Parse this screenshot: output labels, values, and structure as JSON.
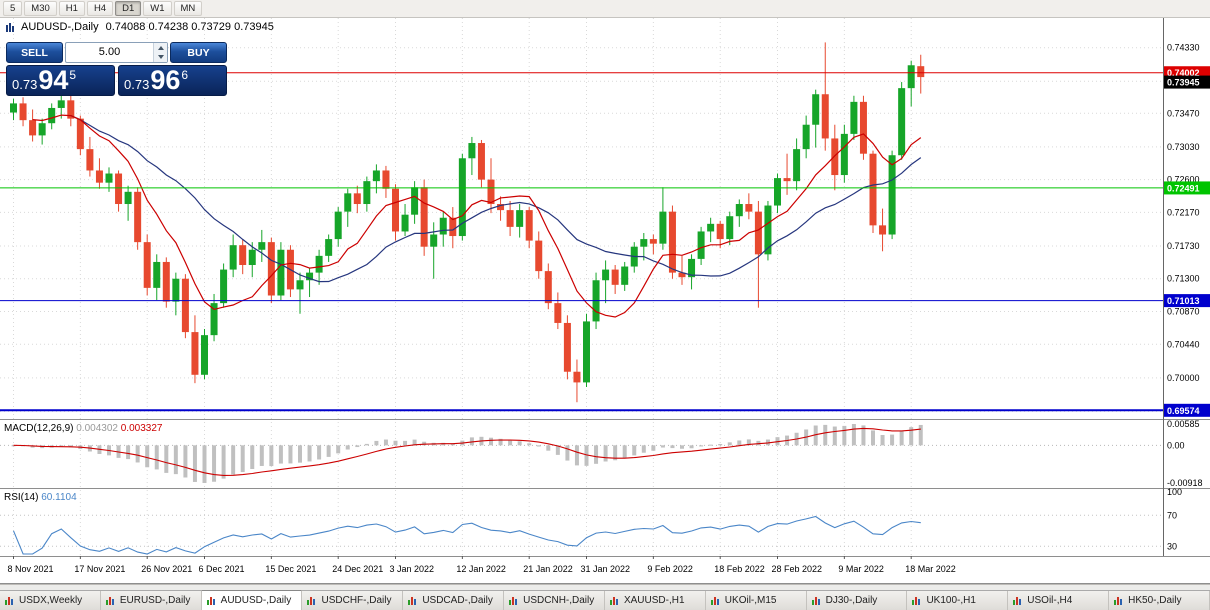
{
  "toolbar": {
    "timeframes": [
      "5",
      "M30",
      "H1",
      "H4",
      "D1",
      "W1",
      "MN"
    ],
    "active": "D1"
  },
  "chart": {
    "title": "AUDUSD-,Daily",
    "ohlc_text": "0.74088 0.74238 0.73729 0.73945"
  },
  "trade_panel": {
    "sell_label": "SELL",
    "buy_label": "BUY",
    "volume": "5.00",
    "sell_price": {
      "prefix": "0.73",
      "big": "94",
      "small": "5"
    },
    "buy_price": {
      "prefix": "0.73",
      "big": "96",
      "small": "6"
    }
  },
  "chart_data": {
    "type": "candlestick",
    "symbol": "AUDUSD",
    "period": "Daily",
    "price_range": [
      0.6946,
      0.7472
    ],
    "y_ticks": [
      0.7433,
      0.7389,
      0.7347,
      0.7303,
      0.726,
      0.7217,
      0.7173,
      0.713,
      0.7087,
      0.7044,
      0.7,
      0.6956
    ],
    "x_labels": [
      {
        "i": 0,
        "t": "8 Nov 2021"
      },
      {
        "i": 7,
        "t": "17 Nov 2021"
      },
      {
        "i": 14,
        "t": "26 Nov 2021"
      },
      {
        "i": 20,
        "t": "6 Dec 2021"
      },
      {
        "i": 27,
        "t": "15 Dec 2021"
      },
      {
        "i": 34,
        "t": "24 Dec 2021"
      },
      {
        "i": 40,
        "t": "3 Jan 2022"
      },
      {
        "i": 47,
        "t": "12 Jan 2022"
      },
      {
        "i": 54,
        "t": "21 Jan 2022"
      },
      {
        "i": 60,
        "t": "31 Jan 2022"
      },
      {
        "i": 67,
        "t": "9 Feb 2022"
      },
      {
        "i": 74,
        "t": "18 Feb 2022"
      },
      {
        "i": 80,
        "t": "28 Feb 2022"
      },
      {
        "i": 87,
        "t": "9 Mar 2022"
      },
      {
        "i": 94,
        "t": "18 Mar 2022"
      }
    ],
    "ohlc": [
      [
        0.7348,
        0.7366,
        0.7338,
        0.736
      ],
      [
        0.736,
        0.7368,
        0.733,
        0.7338
      ],
      [
        0.7338,
        0.7352,
        0.731,
        0.7318
      ],
      [
        0.7318,
        0.734,
        0.7306,
        0.7334
      ],
      [
        0.7334,
        0.736,
        0.7326,
        0.7354
      ],
      [
        0.7354,
        0.737,
        0.734,
        0.7364
      ],
      [
        0.7364,
        0.7372,
        0.733,
        0.734
      ],
      [
        0.734,
        0.7344,
        0.7292,
        0.73
      ],
      [
        0.73,
        0.7316,
        0.7264,
        0.7272
      ],
      [
        0.7272,
        0.7288,
        0.7248,
        0.7256
      ],
      [
        0.7256,
        0.7276,
        0.7244,
        0.7268
      ],
      [
        0.7268,
        0.7272,
        0.7218,
        0.7228
      ],
      [
        0.7228,
        0.7252,
        0.7206,
        0.7244
      ],
      [
        0.7244,
        0.725,
        0.7168,
        0.7178
      ],
      [
        0.7178,
        0.7188,
        0.7108,
        0.7118
      ],
      [
        0.7118,
        0.7162,
        0.7102,
        0.7152
      ],
      [
        0.7152,
        0.7158,
        0.7092,
        0.71
      ],
      [
        0.71,
        0.7138,
        0.7082,
        0.713
      ],
      [
        0.713,
        0.7136,
        0.7052,
        0.706
      ],
      [
        0.706,
        0.7082,
        0.6993,
        0.7004
      ],
      [
        0.7004,
        0.7064,
        0.6998,
        0.7056
      ],
      [
        0.7056,
        0.711,
        0.7048,
        0.7098
      ],
      [
        0.7098,
        0.715,
        0.7092,
        0.7142
      ],
      [
        0.7142,
        0.7188,
        0.7132,
        0.7174
      ],
      [
        0.7174,
        0.7182,
        0.7136,
        0.7148
      ],
      [
        0.7148,
        0.7178,
        0.7132,
        0.7168
      ],
      [
        0.7168,
        0.7194,
        0.7152,
        0.7178
      ],
      [
        0.7178,
        0.7184,
        0.7098,
        0.7108
      ],
      [
        0.7108,
        0.7178,
        0.7102,
        0.7168
      ],
      [
        0.7168,
        0.7174,
        0.7106,
        0.7116
      ],
      [
        0.7116,
        0.7138,
        0.7084,
        0.7128
      ],
      [
        0.7128,
        0.7144,
        0.7106,
        0.7138
      ],
      [
        0.7138,
        0.7168,
        0.7122,
        0.716
      ],
      [
        0.716,
        0.7188,
        0.7152,
        0.7182
      ],
      [
        0.7182,
        0.7224,
        0.7172,
        0.7218
      ],
      [
        0.7218,
        0.7248,
        0.7198,
        0.7242
      ],
      [
        0.7242,
        0.7252,
        0.7216,
        0.7228
      ],
      [
        0.7228,
        0.7264,
        0.7218,
        0.7258
      ],
      [
        0.7258,
        0.728,
        0.7242,
        0.7272
      ],
      [
        0.7272,
        0.7278,
        0.7236,
        0.7248
      ],
      [
        0.7248,
        0.7254,
        0.718,
        0.7192
      ],
      [
        0.7192,
        0.7228,
        0.7186,
        0.7214
      ],
      [
        0.7214,
        0.7258,
        0.7202,
        0.725
      ],
      [
        0.725,
        0.726,
        0.716,
        0.7172
      ],
      [
        0.7172,
        0.7204,
        0.713,
        0.7188
      ],
      [
        0.7188,
        0.7218,
        0.7172,
        0.721
      ],
      [
        0.721,
        0.7224,
        0.717,
        0.7186
      ],
      [
        0.7186,
        0.7294,
        0.718,
        0.7288
      ],
      [
        0.7288,
        0.7316,
        0.7266,
        0.7308
      ],
      [
        0.7308,
        0.7312,
        0.725,
        0.726
      ],
      [
        0.726,
        0.7288,
        0.7216,
        0.7228
      ],
      [
        0.7228,
        0.7238,
        0.7206,
        0.722
      ],
      [
        0.722,
        0.7232,
        0.7186,
        0.7198
      ],
      [
        0.7198,
        0.7228,
        0.7184,
        0.722
      ],
      [
        0.722,
        0.7224,
        0.717,
        0.718
      ],
      [
        0.718,
        0.7192,
        0.713,
        0.714
      ],
      [
        0.714,
        0.715,
        0.709,
        0.7098
      ],
      [
        0.7098,
        0.7112,
        0.7064,
        0.7072
      ],
      [
        0.7072,
        0.7082,
        0.6998,
        0.7008
      ],
      [
        0.7008,
        0.7024,
        0.6968,
        0.6994
      ],
      [
        0.6994,
        0.7084,
        0.6988,
        0.7074
      ],
      [
        0.7074,
        0.7138,
        0.7064,
        0.7128
      ],
      [
        0.7128,
        0.7154,
        0.7098,
        0.7142
      ],
      [
        0.7142,
        0.7148,
        0.711,
        0.7122
      ],
      [
        0.7122,
        0.7152,
        0.7114,
        0.7146
      ],
      [
        0.7146,
        0.7178,
        0.7138,
        0.7172
      ],
      [
        0.7172,
        0.719,
        0.7154,
        0.7182
      ],
      [
        0.7182,
        0.7188,
        0.7162,
        0.7176
      ],
      [
        0.7176,
        0.725,
        0.7168,
        0.7218
      ],
      [
        0.7218,
        0.7226,
        0.713,
        0.7138
      ],
      [
        0.7138,
        0.716,
        0.7122,
        0.7132
      ],
      [
        0.7132,
        0.7162,
        0.7116,
        0.7156
      ],
      [
        0.7156,
        0.7198,
        0.7148,
        0.7192
      ],
      [
        0.7192,
        0.721,
        0.7178,
        0.7202
      ],
      [
        0.7202,
        0.7206,
        0.717,
        0.7182
      ],
      [
        0.7182,
        0.7218,
        0.7174,
        0.7212
      ],
      [
        0.7212,
        0.7234,
        0.7198,
        0.7228
      ],
      [
        0.7228,
        0.7242,
        0.7208,
        0.7218
      ],
      [
        0.7218,
        0.7232,
        0.7092,
        0.7162
      ],
      [
        0.7162,
        0.7232,
        0.7154,
        0.7226
      ],
      [
        0.7226,
        0.7268,
        0.7216,
        0.7262
      ],
      [
        0.7262,
        0.7294,
        0.724,
        0.7258
      ],
      [
        0.7258,
        0.7314,
        0.7246,
        0.73
      ],
      [
        0.73,
        0.7344,
        0.7288,
        0.7332
      ],
      [
        0.7332,
        0.7378,
        0.7302,
        0.7372
      ],
      [
        0.7372,
        0.744,
        0.7298,
        0.7314
      ],
      [
        0.7314,
        0.7332,
        0.7246,
        0.7266
      ],
      [
        0.7266,
        0.7332,
        0.7256,
        0.732
      ],
      [
        0.732,
        0.737,
        0.7312,
        0.7362
      ],
      [
        0.7362,
        0.737,
        0.7286,
        0.7294
      ],
      [
        0.7294,
        0.7298,
        0.719,
        0.72
      ],
      [
        0.72,
        0.7222,
        0.7166,
        0.7188
      ],
      [
        0.7188,
        0.7298,
        0.7182,
        0.7292
      ],
      [
        0.7292,
        0.7388,
        0.7286,
        0.738
      ],
      [
        0.738,
        0.7416,
        0.7356,
        0.741
      ],
      [
        0.74088,
        0.74238,
        0.73729,
        0.73945
      ]
    ],
    "overlays": {
      "ma_fast_period": 8,
      "ma_slow_period": 20
    },
    "hlines": [
      {
        "value": 0.74002,
        "label": "0.74002",
        "color": "#dd0000",
        "width": 1
      },
      {
        "value": 0.72491,
        "label": "0.72491",
        "color": "#00c400",
        "width": 1
      },
      {
        "value": 0.71013,
        "label": "0.71013",
        "color": "#0000cd",
        "width": 1
      },
      {
        "value": 0.69574,
        "label": "0.69574",
        "color": "#0000cd",
        "width": 2
      }
    ],
    "bid_tag": {
      "value": 0.73945,
      "label": "0.73945",
      "bg": "#000000"
    },
    "style": {
      "bull": "#16a529",
      "bear": "#e7492f",
      "ma_fast": "#cc0000",
      "ma_slow": "#26367e",
      "grid": "#d9d9d9",
      "macd_hist": "#c0c0c0",
      "macd_signal": "#cc0000",
      "rsi_line": "#4a86c8"
    }
  },
  "macd_panel": {
    "label": "MACD(12,26,9)",
    "value_main": "0.004302",
    "value_signal": "0.003327",
    "axis_labels": [
      "0.00585",
      "0.00",
      "-0.00918"
    ],
    "params": [
      12,
      26,
      9
    ]
  },
  "rsi_panel": {
    "label": "RSI(14)",
    "value": "60.1104",
    "axis_labels": [
      "100",
      "70",
      "30"
    ],
    "levels": [
      70,
      30
    ],
    "period": 14
  },
  "tabs": {
    "active_index": 2,
    "items": [
      "USDX,Weekly",
      "EURUSD-,Daily",
      "AUDUSD-,Daily",
      "USDCHF-,Daily",
      "USDCAD-,Daily",
      "USDCNH-,Daily",
      "XAUUSD-,H1",
      "UKOil-,M15",
      "DJ30-,Daily",
      "UK100-,H1",
      "USOil-,H4",
      "HK50-,Daily"
    ]
  }
}
